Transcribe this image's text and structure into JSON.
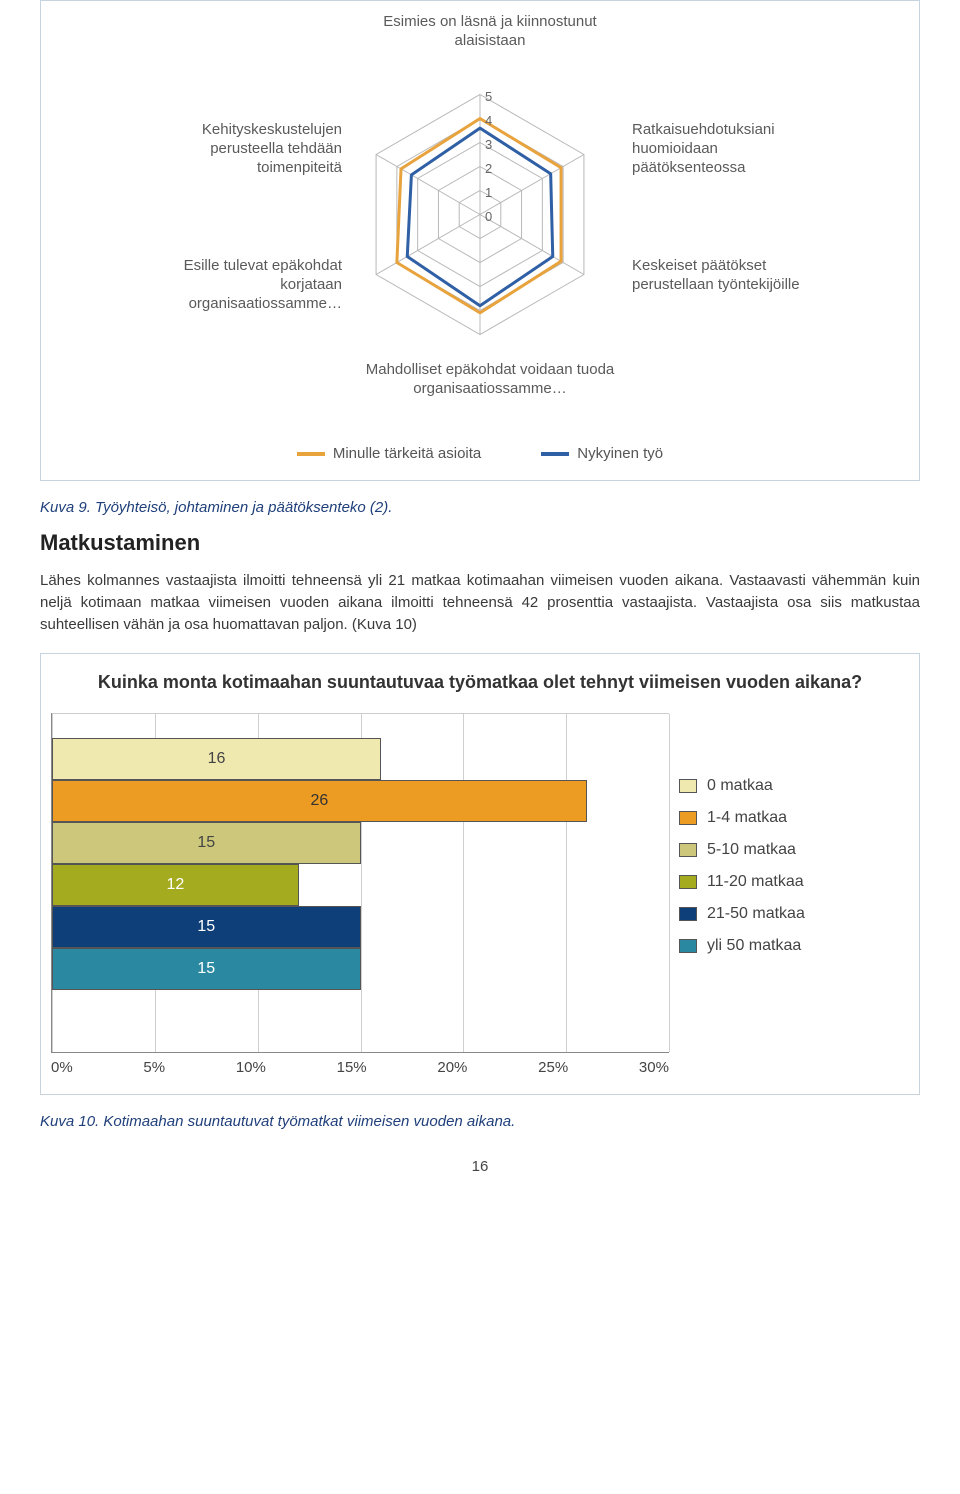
{
  "radar": {
    "type": "radar",
    "axes": [
      "Esimies on läsnä ja kiinnostunut alaisistaan",
      "Ratkaisuehdotuksiani huomioidaan päätöksenteossa",
      "Keskeiset päätökset perustellaan työntekijöille",
      "Mahdolliset epäkohdat voidaan tuoda organisaatiossamme…",
      "Esille tulevat epäkohdat korjataan organisaatiossamme…",
      "Kehityskeskustelujen perusteella tehdään toimenpiteitä"
    ],
    "max": 5,
    "ticks": [
      0,
      1,
      2,
      3,
      4,
      5
    ],
    "series": [
      {
        "name": "Minulle tärkeitä asioita",
        "color": "#e8a33d",
        "values": [
          4.0,
          3.9,
          3.9,
          4.1,
          4.0,
          3.8
        ]
      },
      {
        "name": "Nykyinen työ",
        "color": "#2f5fa5",
        "values": [
          3.6,
          3.4,
          3.5,
          3.8,
          3.5,
          3.3
        ]
      }
    ],
    "grid_color": "#b8b8b8",
    "background": "#ffffff",
    "label_color": "#5a5a5a",
    "label_fontsize": 15,
    "line_width": 3
  },
  "caption1": "Kuva 9. Työyhteisö, johtaminen ja päätöksenteko (2).",
  "section_heading": "Matkustaminen",
  "body_text": "Lähes kolmannes vastaajista ilmoitti tehneensä yli 21 matkaa kotimaahan viimeisen vuoden aikana. Vastaavasti vähemmän kuin neljä kotimaan matkaa viimeisen vuoden aikana ilmoitti tehneensä 42 prosenttia vastaajista. Vastaajista osa siis matkustaa suhteellisen vähän ja osa huomattavan paljon. (Kuva 10)",
  "bar_chart": {
    "type": "bar-horizontal",
    "title": "Kuinka monta kotimaahan suuntautuvaa työmatkaa olet tehnyt viimeisen vuoden aikana?",
    "x_ticks": [
      "0%",
      "5%",
      "10%",
      "15%",
      "20%",
      "25%",
      "30%"
    ],
    "x_max_pct": 30,
    "bars": [
      {
        "label": "0 matkaa",
        "value": 16,
        "fill": "#efe9b0",
        "text_color": "#444444"
      },
      {
        "label": "1-4 matkaa",
        "value": 26,
        "fill": "#ec9c23",
        "text_color": "#333333"
      },
      {
        "label": "5-10 matkaa",
        "value": 15,
        "fill": "#ccc77a",
        "text_color": "#444444"
      },
      {
        "label": "11-20 matkaa",
        "value": 12,
        "fill": "#a5ab1f",
        "text_color": "#ffffff"
      },
      {
        "label": "21-50 matkaa",
        "value": 15,
        "fill": "#0f3f78",
        "text_color": "#ffffff"
      },
      {
        "label": "yli 50 matkaa",
        "value": 15,
        "fill": "#2a89a0",
        "text_color": "#ffffff"
      }
    ],
    "legend_colors": [
      "#efe9b0",
      "#ec9c23",
      "#ccc77a",
      "#a5ab1f",
      "#0f3f78",
      "#2a89a0"
    ],
    "grid_color": "#cfcfcf",
    "axis_color": "#888888",
    "label_fontsize": 16
  },
  "caption2": "Kuva 10. Kotimaahan suuntautuvat työmatkat viimeisen vuoden aikana.",
  "page_number": "16"
}
